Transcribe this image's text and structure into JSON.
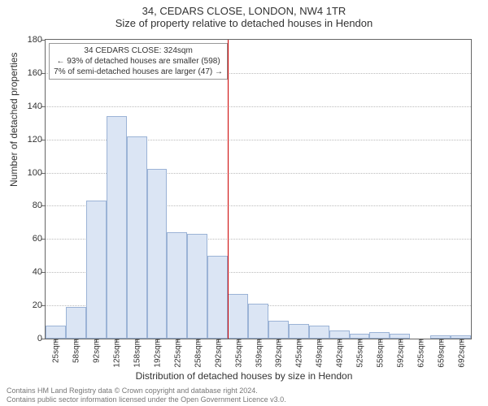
{
  "header": {
    "title": "34, CEDARS CLOSE, LONDON, NW4 1TR",
    "subtitle": "Size of property relative to detached houses in Hendon"
  },
  "axes": {
    "ylabel": "Number of detached properties",
    "xlabel": "Distribution of detached houses by size in Hendon"
  },
  "chart": {
    "type": "histogram",
    "ylim_max": 180,
    "ytick_step": 20,
    "yticks": [
      0,
      20,
      40,
      60,
      80,
      100,
      120,
      140,
      160,
      180
    ],
    "x_categories": [
      "25sqm",
      "58sqm",
      "92sqm",
      "125sqm",
      "158sqm",
      "192sqm",
      "225sqm",
      "258sqm",
      "292sqm",
      "325sqm",
      "359sqm",
      "392sqm",
      "425sqm",
      "459sqm",
      "492sqm",
      "525sqm",
      "558sqm",
      "592sqm",
      "625sqm",
      "659sqm",
      "692sqm"
    ],
    "values": [
      8,
      19,
      83,
      134,
      122,
      102,
      64,
      63,
      50,
      27,
      21,
      11,
      9,
      8,
      5,
      3,
      4,
      3,
      0,
      2,
      2
    ],
    "bar_fill": "#dbe5f4",
    "bar_border": "#9bb3d6",
    "grid_color": "#bbbbbb",
    "axis_color": "#666666",
    "background_color": "#ffffff",
    "marker_line_color": "#cc0000",
    "marker_x_index": 9,
    "title_fontsize": 13,
    "label_fontsize": 12,
    "tick_fontsize": 11
  },
  "annotation": {
    "line1": "34 CEDARS CLOSE: 324sqm",
    "line2": "← 93% of detached houses are smaller (598)",
    "line3": "7% of semi-detached houses are larger (47) →"
  },
  "footer": {
    "line1": "Contains HM Land Registry data © Crown copyright and database right 2024.",
    "line2": "Contains public sector information licensed under the Open Government Licence v3.0."
  }
}
